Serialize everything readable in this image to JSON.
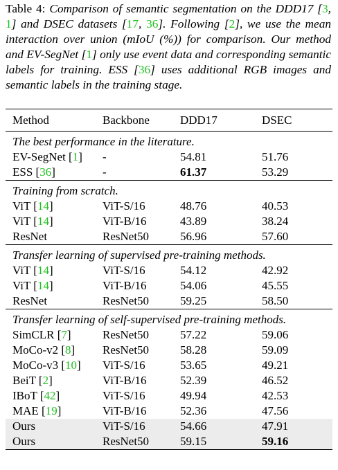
{
  "caption": {
    "label": "Table 4:",
    "text": [
      "Comparison of semantic segmentation on the DDD17 [",
      "3",
      ", ",
      "1",
      "] and DSEC datasets [",
      "17",
      ", ",
      "36",
      "]. Following [",
      "2",
      "], we use the mean interaction over union (mIoU (%)) for comparison. Our method and EV-SegNet [",
      "1",
      "] only use event data and corresponding semantic labels for training. ESS [",
      "36",
      "] uses additional RGB images and semantic labels in the training stage."
    ]
  },
  "table": {
    "header": [
      "Method",
      "Backbone",
      "DDD17",
      "DSEC"
    ],
    "sections": [
      {
        "title": "The best performance in the literature.",
        "rows": [
          {
            "method": [
              "EV-SegNet [",
              "1",
              "]"
            ],
            "backbone": "-",
            "ddd17": "54.81",
            "dsec": "51.76"
          },
          {
            "method": [
              "ESS [",
              "36",
              "]"
            ],
            "backbone": "-",
            "ddd17": "61.37",
            "dsec": "53.29",
            "bold": [
              "ddd17"
            ]
          }
        ]
      },
      {
        "title": "Training from scratch.",
        "rows": [
          {
            "method": [
              "ViT [",
              "14",
              "]"
            ],
            "backbone": "ViT-S/16",
            "ddd17": "48.76",
            "dsec": "40.53"
          },
          {
            "method": [
              "ViT [",
              "14",
              "]"
            ],
            "backbone": "ViT-B/16",
            "ddd17": "43.89",
            "dsec": "38.24"
          },
          {
            "method": [
              "ResNet"
            ],
            "backbone": "ResNet50",
            "ddd17": "56.96",
            "dsec": "57.60"
          }
        ]
      },
      {
        "title": "Transfer learning of supervised pre-training methods.",
        "rows": [
          {
            "method": [
              "ViT [",
              "14",
              "]"
            ],
            "backbone": "ViT-S/16",
            "ddd17": "54.12",
            "dsec": "42.92"
          },
          {
            "method": [
              "ViT [",
              "14",
              "]"
            ],
            "backbone": "ViT-B/16",
            "ddd17": "54.06",
            "dsec": "45.55"
          },
          {
            "method": [
              "ResNet"
            ],
            "backbone": "ResNet50",
            "ddd17": "59.25",
            "dsec": "58.50"
          }
        ]
      },
      {
        "title": "Transfer learning of self-supervised pre-training methods.",
        "rows": [
          {
            "method": [
              "SimCLR [",
              "7",
              "]"
            ],
            "backbone": "ResNet50",
            "ddd17": "57.22",
            "dsec": "59.06"
          },
          {
            "method": [
              "MoCo-v2 [",
              "8",
              "]"
            ],
            "backbone": "ResNet50",
            "ddd17": "58.28",
            "dsec": "59.09"
          },
          {
            "method": [
              "MoCo-v3 [",
              "10",
              "]"
            ],
            "backbone": "ViT-S/16",
            "ddd17": "53.65",
            "dsec": "49.21"
          },
          {
            "method": [
              "BeiT [",
              "2",
              "]"
            ],
            "backbone": "ViT-B/16",
            "ddd17": "52.39",
            "dsec": "46.52"
          },
          {
            "method": [
              "IBoT [",
              "42",
              "]"
            ],
            "backbone": "ViT-S/16",
            "ddd17": "49.94",
            "dsec": "42.53"
          },
          {
            "method": [
              "MAE [",
              "19",
              "]"
            ],
            "backbone": "ViT-B/16",
            "ddd17": "52.36",
            "dsec": "47.56"
          },
          {
            "method": [
              "Ours"
            ],
            "backbone": "ViT-S/16",
            "ddd17": "54.66",
            "dsec": "47.91",
            "highlight": true
          },
          {
            "method": [
              "Ours"
            ],
            "backbone": "ResNet50",
            "ddd17": "59.15",
            "dsec": "59.16",
            "highlight": true,
            "bold": [
              "dsec"
            ]
          }
        ]
      }
    ]
  }
}
